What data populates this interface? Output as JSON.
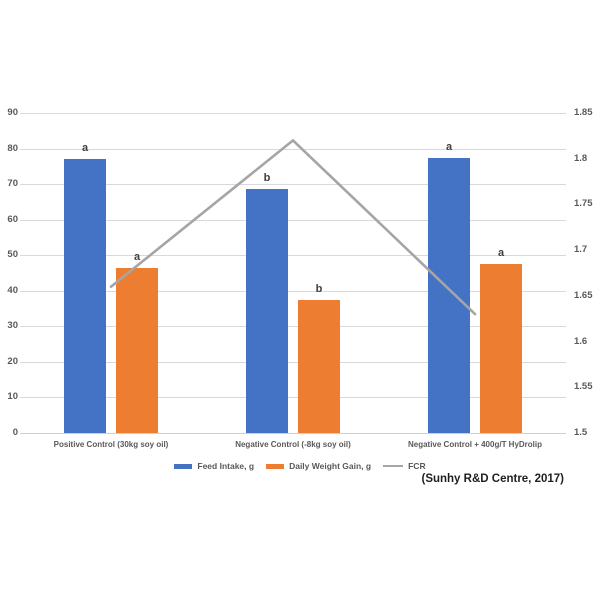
{
  "chart_data": {
    "type": "bar",
    "title": "",
    "categories": [
      "Positive Control (30kg soy oil)",
      "Negative Control (-8kg soy oil)",
      "Negative Control + 400g/T HyDrolip"
    ],
    "series": [
      {
        "name": "Feed Intake, g",
        "slug": "feed-intake",
        "render": "bar",
        "axis": "left",
        "color": "#4472C4",
        "values": [
          77.2,
          68.5,
          77.4
        ],
        "point_labels": [
          "a",
          "b",
          "a"
        ]
      },
      {
        "name": "Daily Weight Gain, g",
        "slug": "daily-weight-gain",
        "render": "bar",
        "axis": "left",
        "color": "#ED7D31",
        "values": [
          46.5,
          37.5,
          47.5
        ],
        "point_labels": [
          "a",
          "b",
          "a"
        ]
      },
      {
        "name": "FCR",
        "slug": "fcr",
        "render": "line",
        "axis": "right",
        "color": "#A5A5A5",
        "values": [
          1.66,
          1.82,
          1.63
        ],
        "point_labels": [
          "",
          "",
          ""
        ]
      }
    ],
    "left_axis": {
      "min": 0,
      "max": 90,
      "step": 10,
      "tick_labels": [
        "0",
        "10",
        "20",
        "30",
        "40",
        "50",
        "60",
        "70",
        "80",
        "90"
      ]
    },
    "right_axis": {
      "min": 1.5,
      "max": 1.85,
      "step": 0.05,
      "tick_labels": [
        "1.5",
        "1.55",
        "1.6",
        "1.65",
        "1.7",
        "1.75",
        "1.8",
        "1.85"
      ]
    },
    "grid": "horizontal",
    "legend_position": "bottom",
    "citation": "(Sunhy R&D Centre, 2017)"
  },
  "colors": {
    "background": "#FFFFFF",
    "gridline": "#D9D9D9",
    "axis_line": "#CFCFCF",
    "tick_text": "#595959",
    "category_text": "#595959",
    "annotation_text": "#404040",
    "citation_text": "#1F1F1F"
  }
}
